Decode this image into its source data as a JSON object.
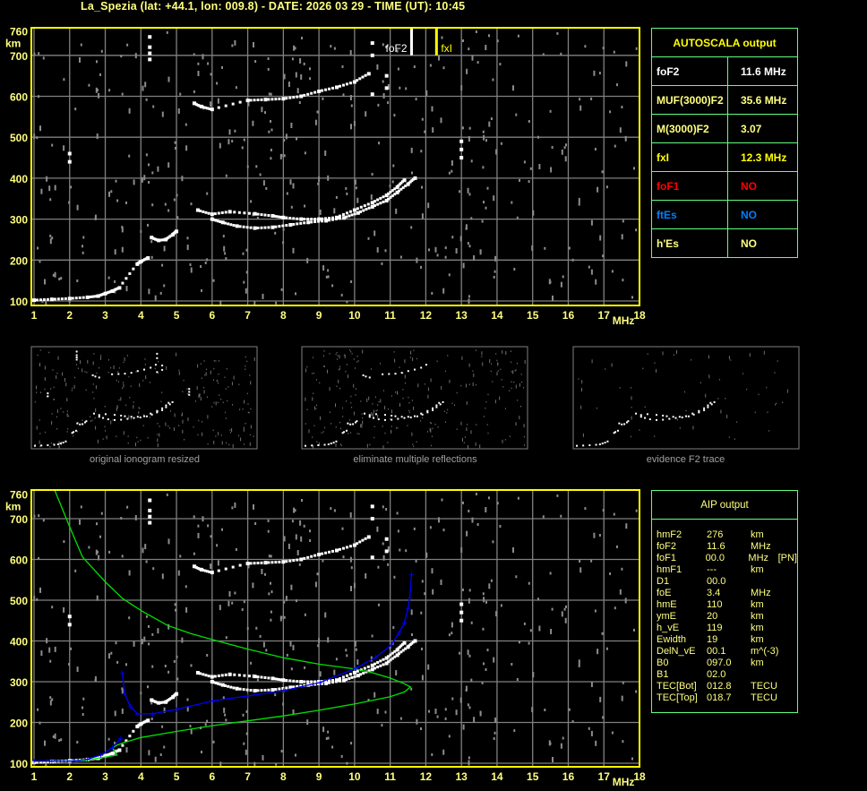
{
  "header": {
    "title": "La_Spezia (lat: +44.1, lon: 009.8) - DATE: 2026 03 29 - TIME (UT): 10:45"
  },
  "colors": {
    "frame": "#ffff00",
    "grid": "#808080",
    "trace": "#ffffff",
    "noise": "#8c8c8c",
    "profile": "#00e000",
    "fit": "#0000ff",
    "table_border": "#60ff80"
  },
  "autoscala": {
    "title": "AUTOSCALA output",
    "rows": [
      {
        "label": "foF2",
        "value": "11.6 MHz",
        "color": "#ffffff"
      },
      {
        "label": "MUF(3000)F2",
        "value": "35.6 MHz",
        "color": "#ffff80"
      },
      {
        "label": "M(3000)F2",
        "value": "3.07",
        "color": "#ffff80"
      },
      {
        "label": "fxI",
        "value": "12.3 MHz",
        "color": "#ffff00"
      },
      {
        "label": "foF1",
        "value": "NO",
        "color": "#ff0000"
      },
      {
        "label": "ftEs",
        "value": "NO",
        "color": "#0080ff"
      },
      {
        "label": "h'Es",
        "value": "NO",
        "color": "#ffff80"
      }
    ]
  },
  "aip": {
    "title": "AIP output",
    "rows": [
      [
        "hmF2",
        "276",
        "km",
        ""
      ],
      [
        "foF2",
        "11.6",
        "MHz",
        ""
      ],
      [
        "foF1",
        "00.0",
        "MHz",
        "[PN]"
      ],
      [
        "hmF1",
        "---",
        "km",
        ""
      ],
      [
        "D1",
        "00.0",
        "",
        ""
      ],
      [
        "foE",
        "3.4",
        "MHz",
        ""
      ],
      [
        "hmE",
        "110",
        "km",
        ""
      ],
      [
        "ymE",
        "20",
        "km",
        ""
      ],
      [
        "h_vE",
        "119",
        "km",
        ""
      ],
      [
        "Ewidth",
        "19",
        "km",
        ""
      ],
      [
        "DelN_vE",
        "00.1",
        "m^(-3)",
        ""
      ],
      [
        "B0",
        "097.0",
        "km",
        ""
      ],
      [
        "B1",
        "02.0",
        "",
        ""
      ],
      [
        "TEC[Bot]",
        "012.8",
        "TECU",
        ""
      ],
      [
        "TEC[Top]",
        "018.7",
        "TECU",
        ""
      ]
    ]
  },
  "thumbnails": [
    {
      "caption": "original ionogram resized"
    },
    {
      "caption": "eliminate multiple reflections"
    },
    {
      "caption": "evidence F2 trace"
    }
  ],
  "chart_data": [
    {
      "type": "scatter",
      "xlabel": "MHz",
      "ylabel": "km",
      "xlim": [
        1,
        18
      ],
      "ylim": [
        100,
        760
      ],
      "xticks": [
        "1",
        "2",
        "3",
        "4",
        "5",
        "6",
        "7",
        "8",
        "9",
        "10",
        "11",
        "12",
        "13",
        "14",
        "15",
        "16",
        "17",
        "18"
      ],
      "yticks": [
        "100",
        "200",
        "300",
        "400",
        "500",
        "600",
        "700",
        "760"
      ],
      "grid": true,
      "markers": [
        {
          "label": "foF2",
          "x": 11.6,
          "color": "#ffffff"
        },
        {
          "label": "fxI",
          "x": 12.3,
          "color": "#ffff00"
        }
      ],
      "traces": {
        "E_and_low": [
          [
            1.0,
            102
          ],
          [
            1.5,
            104
          ],
          [
            2.0,
            106
          ],
          [
            2.5,
            109
          ],
          [
            2.8,
            112
          ],
          [
            3.0,
            118
          ],
          [
            3.2,
            124
          ],
          [
            3.4,
            132
          ],
          [
            3.9,
            190
          ],
          [
            4.0,
            196
          ],
          [
            4.2,
            205
          ]
        ],
        "F_lower": [
          [
            4.3,
            255
          ],
          [
            4.5,
            248
          ],
          [
            4.7,
            250
          ],
          [
            4.9,
            262
          ],
          [
            5.0,
            270
          ]
        ],
        "F2_o_trace": [
          [
            6.0,
            300
          ],
          [
            6.3,
            292
          ],
          [
            6.7,
            283
          ],
          [
            7.2,
            278
          ],
          [
            7.7,
            280
          ],
          [
            8.2,
            286
          ],
          [
            8.7,
            292
          ],
          [
            9.2,
            296
          ],
          [
            9.7,
            303
          ],
          [
            10.1,
            315
          ],
          [
            10.5,
            330
          ],
          [
            10.9,
            345
          ],
          [
            11.2,
            365
          ],
          [
            11.5,
            385
          ],
          [
            11.7,
            400
          ]
        ],
        "F2_upper_branch": [
          [
            5.6,
            322
          ],
          [
            6.0,
            312
          ],
          [
            6.5,
            318
          ],
          [
            7.2,
            313
          ],
          [
            7.7,
            308
          ],
          [
            8.0,
            304
          ],
          [
            8.5,
            300
          ],
          [
            9.0,
            300
          ],
          [
            9.5,
            304
          ],
          [
            10.0,
            322
          ],
          [
            10.5,
            340
          ],
          [
            10.9,
            358
          ],
          [
            11.2,
            378
          ],
          [
            11.4,
            395
          ]
        ],
        "second_hop": [
          [
            5.5,
            583
          ],
          [
            5.7,
            575
          ],
          [
            6.0,
            568
          ],
          [
            7.0,
            590
          ],
          [
            7.5,
            592
          ],
          [
            8.0,
            594
          ],
          [
            8.5,
            600
          ],
          [
            9.0,
            612
          ],
          [
            9.5,
            622
          ],
          [
            10.0,
            635
          ],
          [
            10.4,
            655
          ]
        ],
        "spikes": [
          [
            4.25,
            690
          ],
          [
            4.25,
            705
          ],
          [
            4.25,
            720
          ],
          [
            4.25,
            745
          ],
          [
            10.5,
            605
          ],
          [
            10.5,
            700
          ],
          [
            10.5,
            730
          ],
          [
            10.9,
            620
          ],
          [
            10.9,
            650
          ],
          [
            13.0,
            450
          ],
          [
            13.0,
            470
          ],
          [
            13.0,
            490
          ],
          [
            2.0,
            440
          ],
          [
            2.0,
            460
          ]
        ]
      }
    },
    {
      "type": "line",
      "xlabel": "MHz",
      "ylabel": "km",
      "xlim": [
        1,
        18
      ],
      "ylim": [
        100,
        760
      ],
      "xticks": [
        "1",
        "2",
        "3",
        "4",
        "5",
        "6",
        "7",
        "8",
        "9",
        "10",
        "11",
        "12",
        "13",
        "14",
        "15",
        "16",
        "17",
        "18"
      ],
      "yticks": [
        "100",
        "200",
        "300",
        "400",
        "500",
        "600",
        "700",
        "760"
      ],
      "grid": true,
      "series": [
        {
          "role": "profile",
          "color": "#00e000",
          "points": [
            [
              1.56,
              774
            ],
            [
              2.0,
              680
            ],
            [
              2.36,
              606
            ],
            [
              3.0,
              545
            ],
            [
              3.49,
              504
            ],
            [
              4.0,
              475
            ],
            [
              4.75,
              438
            ],
            [
              5.4,
              418
            ],
            [
              6.02,
              403
            ],
            [
              7.0,
              380
            ],
            [
              8.0,
              359
            ],
            [
              9.0,
              343
            ],
            [
              10.03,
              331
            ],
            [
              10.5,
              322
            ],
            [
              11.0,
              309
            ],
            [
              11.4,
              295
            ],
            [
              11.57,
              287
            ],
            [
              11.4,
              275
            ],
            [
              11.0,
              263
            ],
            [
              10.03,
              246
            ],
            [
              9.0,
              230
            ],
            [
              8.0,
              216
            ],
            [
              7.0,
              204
            ],
            [
              6.0,
              192
            ],
            [
              5.0,
              178
            ],
            [
              4.0,
              163
            ],
            [
              3.5,
              150
            ],
            [
              3.32,
              144
            ],
            [
              3.2,
              137
            ],
            [
              3.33,
              120
            ],
            [
              2.36,
              106
            ],
            [
              1.0,
              105
            ]
          ]
        },
        {
          "role": "fit_lower",
          "color": "#0000ff",
          "points": [
            [
              1.0,
              105
            ],
            [
              1.5,
              105
            ],
            [
              2.1,
              105
            ],
            [
              2.5,
              110
            ],
            [
              2.87,
              120
            ],
            [
              3.2,
              138
            ],
            [
              3.43,
              160
            ]
          ]
        },
        {
          "role": "fit_upper",
          "color": "#0000ff",
          "points": [
            [
              3.48,
              322
            ],
            [
              3.54,
              271
            ],
            [
              3.7,
              240
            ],
            [
              3.9,
              221
            ],
            [
              4.33,
              221
            ],
            [
              5.0,
              232
            ],
            [
              6.02,
              253
            ],
            [
              7.0,
              265
            ],
            [
              8.0,
              278
            ],
            [
              9.03,
              298
            ],
            [
              10.03,
              333
            ],
            [
              10.6,
              360
            ],
            [
              11.03,
              390
            ],
            [
              11.25,
              420
            ],
            [
              11.4,
              445
            ],
            [
              11.5,
              480
            ],
            [
              11.55,
              506
            ],
            [
              11.6,
              564
            ]
          ]
        }
      ]
    }
  ]
}
